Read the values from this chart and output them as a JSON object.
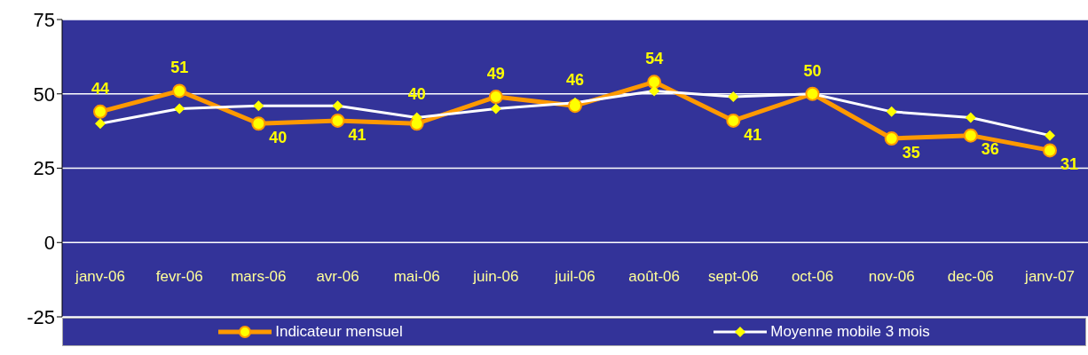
{
  "chart_data": {
    "type": "line",
    "categories": [
      "janv-06",
      "fevr-06",
      "mars-06",
      "avr-06",
      "mai-06",
      "juin-06",
      "juil-06",
      "août-06",
      "sept-06",
      "oct-06",
      "nov-06",
      "dec-06",
      "janv-07"
    ],
    "series": [
      {
        "name": "Indicateur mensuel",
        "color": "#ff9900",
        "marker": "circle",
        "data_labels": true,
        "values": [
          44,
          51,
          40,
          41,
          40,
          49,
          46,
          54,
          41,
          50,
          35,
          36,
          31
        ]
      },
      {
        "name": "Moyenne mobile 3 mois",
        "color": "#ffffff",
        "marker": "diamond",
        "values": [
          40,
          45,
          46,
          46,
          42,
          45,
          47,
          51,
          49,
          50,
          44,
          42,
          36
        ]
      }
    ],
    "ylim": [
      -25,
      75
    ],
    "yticks": [
      -25,
      0,
      25,
      50,
      75
    ],
    "grid": "y",
    "legend": "bottom"
  }
}
